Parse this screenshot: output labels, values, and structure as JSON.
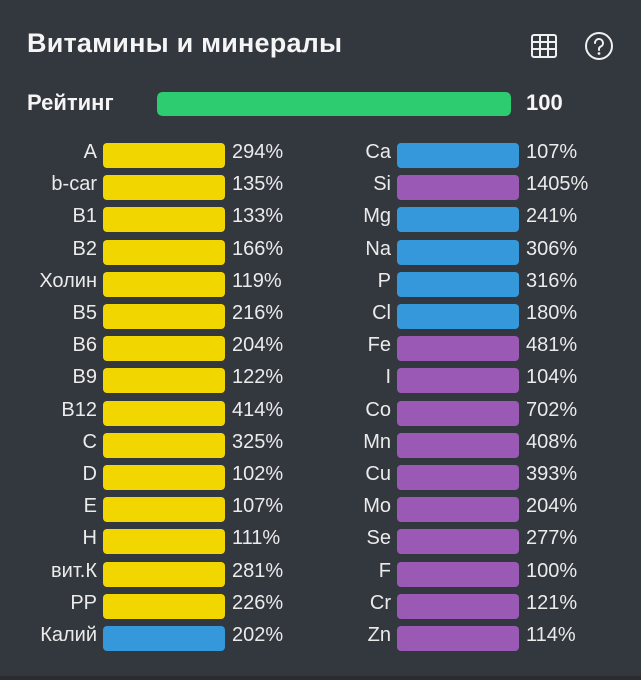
{
  "title": "Витамины и минералы",
  "icons": {
    "table": "table-grid-icon",
    "help": "help-circle-icon"
  },
  "rating": {
    "label": "Рейтинг",
    "value": "100",
    "fraction": 1.0,
    "color": "#2ecc71"
  },
  "colors": {
    "yellow": "#f2d600",
    "blue": "#3498db",
    "purple": "#9b59b6"
  },
  "vitamins": [
    {
      "name": "A",
      "pct": "294%",
      "color": "yellow"
    },
    {
      "name": "b-car",
      "pct": "135%",
      "color": "yellow"
    },
    {
      "name": "B1",
      "pct": "133%",
      "color": "yellow"
    },
    {
      "name": "B2",
      "pct": "166%",
      "color": "yellow"
    },
    {
      "name": "Холин",
      "pct": "119%",
      "color": "yellow"
    },
    {
      "name": "B5",
      "pct": "216%",
      "color": "yellow"
    },
    {
      "name": "B6",
      "pct": "204%",
      "color": "yellow"
    },
    {
      "name": "B9",
      "pct": "122%",
      "color": "yellow"
    },
    {
      "name": "B12",
      "pct": "414%",
      "color": "yellow"
    },
    {
      "name": "C",
      "pct": "325%",
      "color": "yellow"
    },
    {
      "name": "D",
      "pct": "102%",
      "color": "yellow"
    },
    {
      "name": "E",
      "pct": "107%",
      "color": "yellow"
    },
    {
      "name": "H",
      "pct": "111%",
      "color": "yellow"
    },
    {
      "name": "вит.К",
      "pct": "281%",
      "color": "yellow"
    },
    {
      "name": "PP",
      "pct": "226%",
      "color": "yellow"
    },
    {
      "name": "Калий",
      "pct": "202%",
      "color": "blue"
    }
  ],
  "minerals": [
    {
      "name": "Ca",
      "pct": "107%",
      "color": "blue"
    },
    {
      "name": "Si",
      "pct": "1405%",
      "color": "purple"
    },
    {
      "name": "Mg",
      "pct": "241%",
      "color": "blue"
    },
    {
      "name": "Na",
      "pct": "306%",
      "color": "blue"
    },
    {
      "name": "P",
      "pct": "316%",
      "color": "blue"
    },
    {
      "name": "Cl",
      "pct": "180%",
      "color": "blue"
    },
    {
      "name": "Fe",
      "pct": "481%",
      "color": "purple"
    },
    {
      "name": "I",
      "pct": "104%",
      "color": "purple"
    },
    {
      "name": "Co",
      "pct": "702%",
      "color": "purple"
    },
    {
      "name": "Mn",
      "pct": "408%",
      "color": "purple"
    },
    {
      "name": "Cu",
      "pct": "393%",
      "color": "purple"
    },
    {
      "name": "Mo",
      "pct": "204%",
      "color": "purple"
    },
    {
      "name": "Se",
      "pct": "277%",
      "color": "purple"
    },
    {
      "name": "F",
      "pct": "100%",
      "color": "purple"
    },
    {
      "name": "Cr",
      "pct": "121%",
      "color": "purple"
    },
    {
      "name": "Zn",
      "pct": "114%",
      "color": "purple"
    }
  ]
}
